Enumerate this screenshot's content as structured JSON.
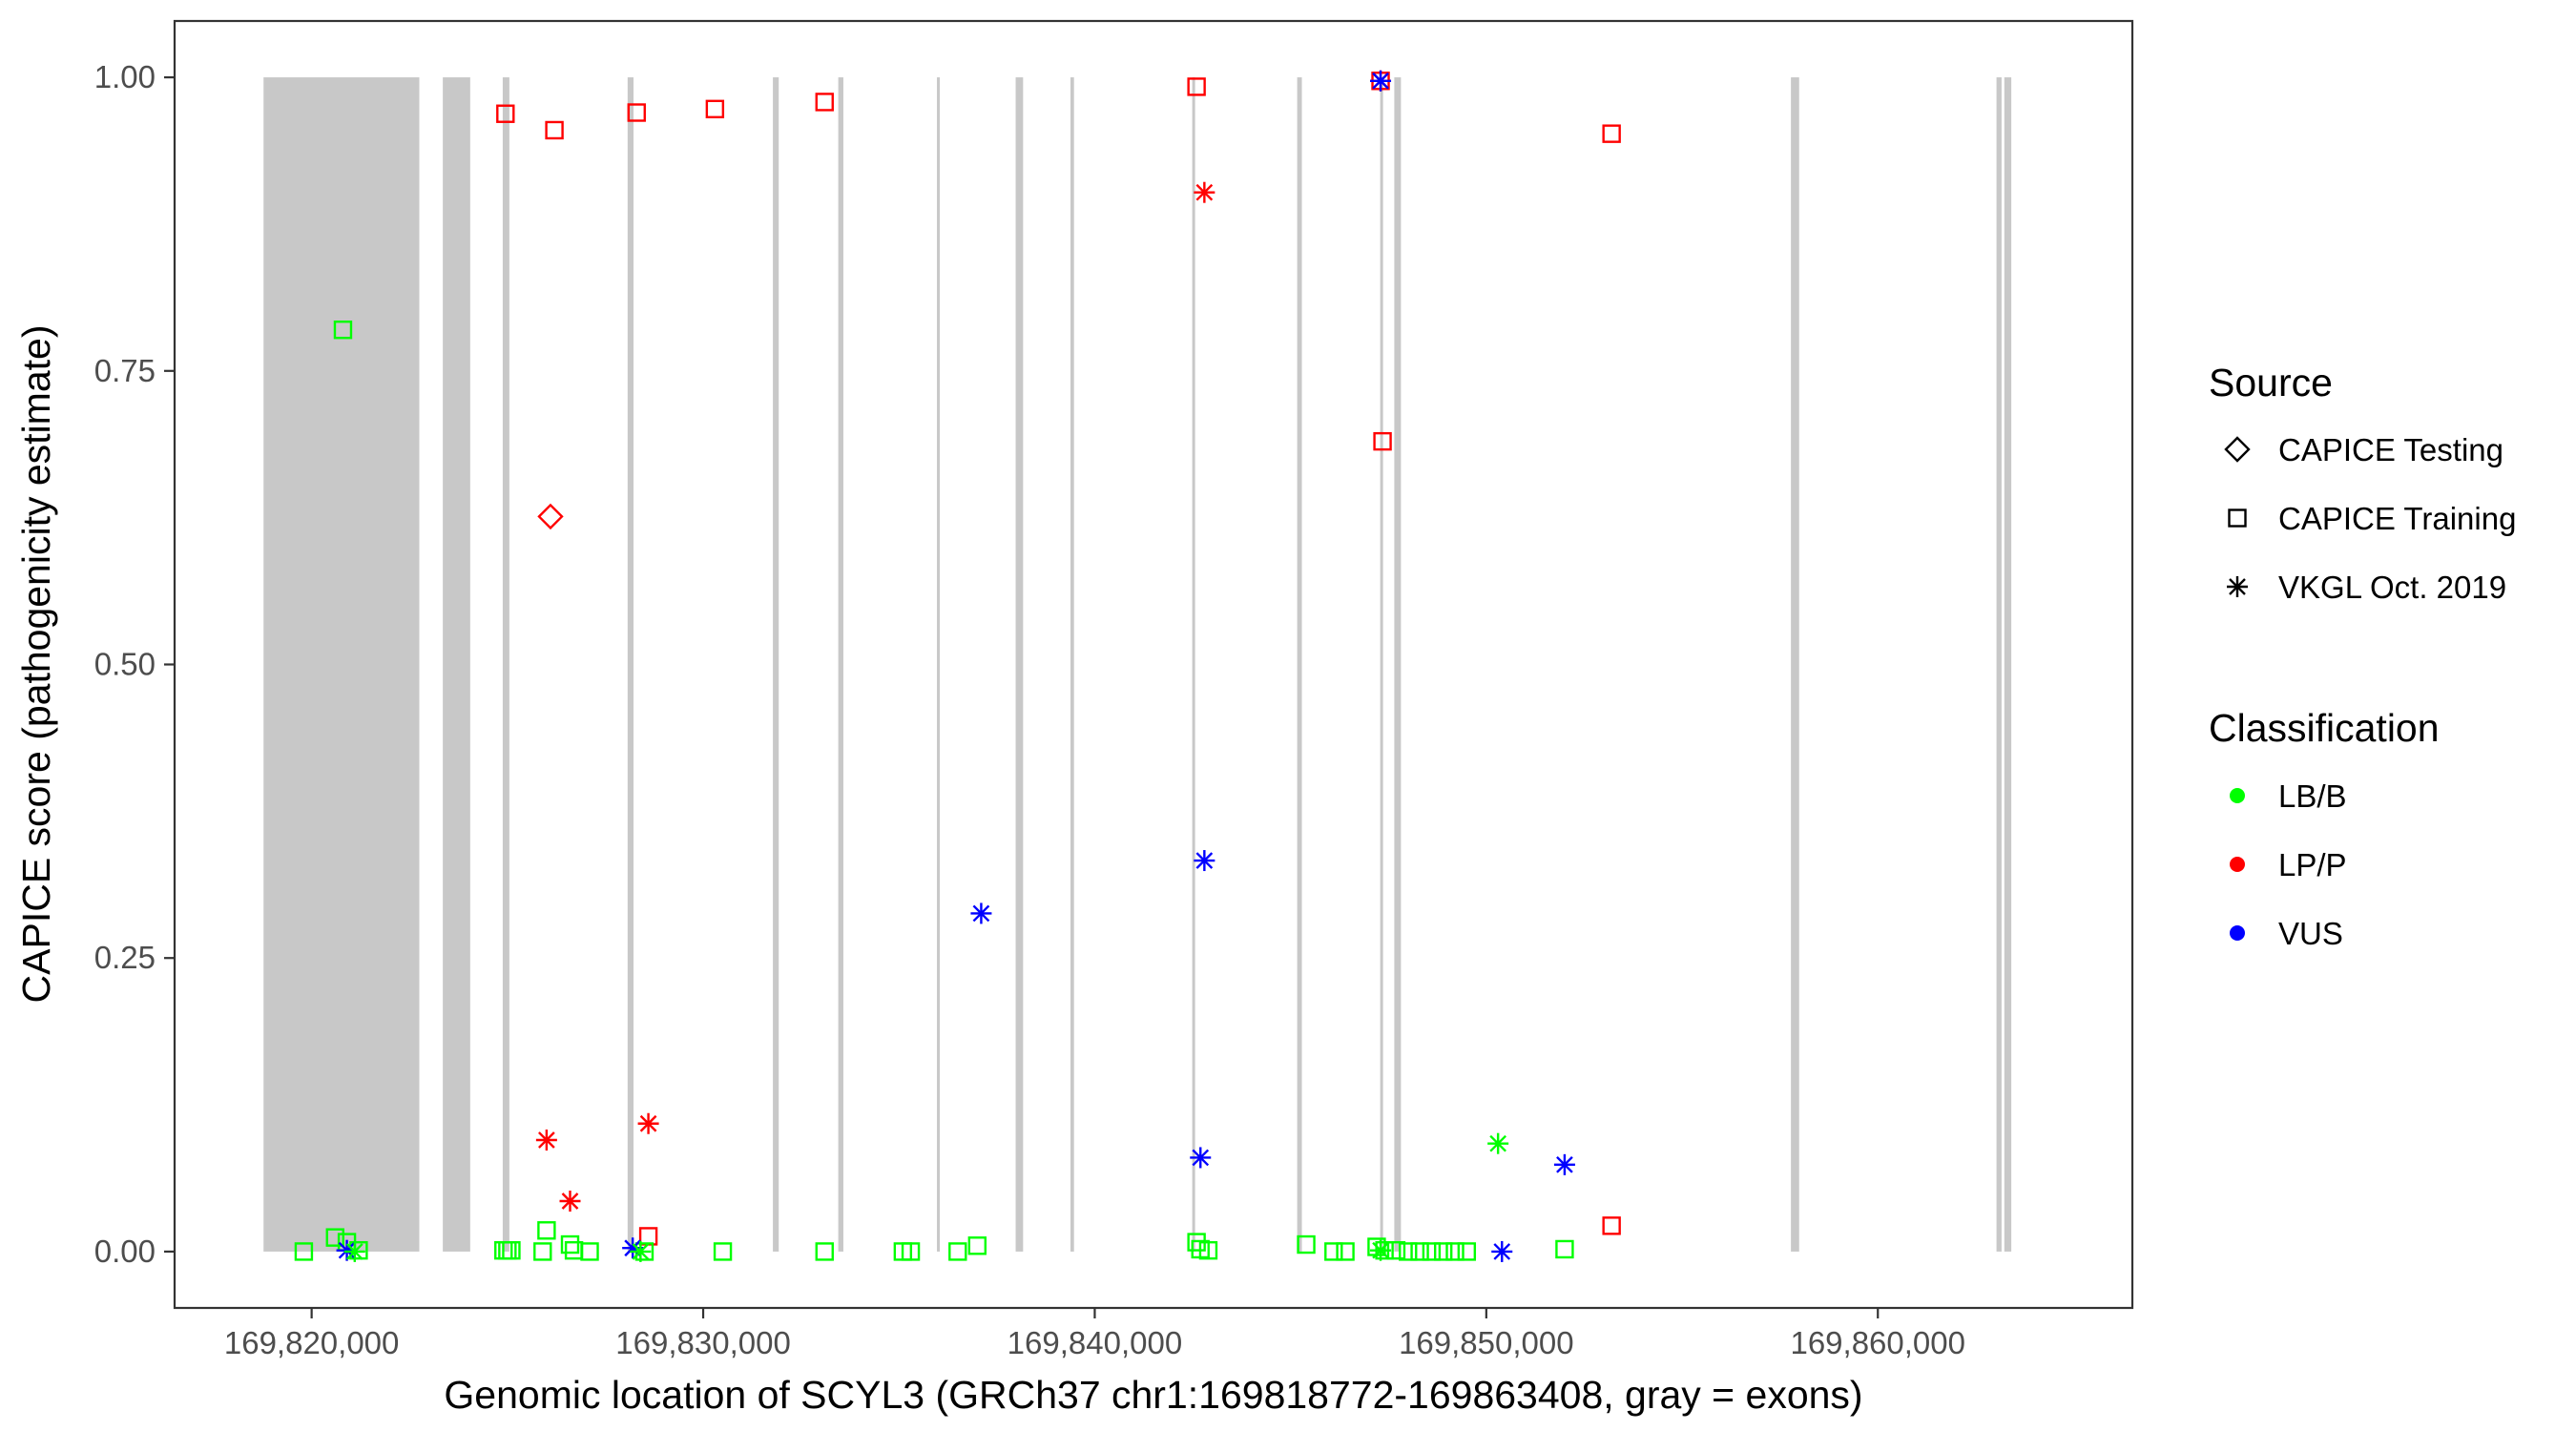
{
  "chart_data": {
    "type": "scatter",
    "xlabel": "Genomic location of SCYL3 (GRCh37 chr1:169818772-169863408, gray = exons)",
    "ylabel": "CAPICE score (pathogenicity estimate)",
    "xlim": [
      169816500,
      169866500
    ],
    "ylim": [
      -0.048,
      1.048
    ],
    "x_ticks": [
      169820000,
      169830000,
      169840000,
      169850000,
      169860000
    ],
    "x_tick_labels": [
      "169,820,000",
      "169,830,000",
      "169,840,000",
      "169,850,000",
      "169,860,000"
    ],
    "y_ticks": [
      0,
      0.25,
      0.5,
      0.75,
      1
    ],
    "y_tick_labels": [
      "0.00",
      "0.25",
      "0.50",
      "0.75",
      "1.00"
    ],
    "grid": false,
    "legend_placement": "right",
    "exons": [
      [
        169818772,
        169822750
      ],
      [
        169823350,
        169824050
      ],
      [
        169824880,
        169825050
      ],
      [
        169828070,
        169828220
      ],
      [
        169831780,
        169831930
      ],
      [
        169833450,
        169833580
      ],
      [
        169835970,
        169836030
      ],
      [
        169837980,
        169838170
      ],
      [
        169839380,
        169839470
      ],
      [
        169842490,
        169842560
      ],
      [
        169845170,
        169845290
      ],
      [
        169847290,
        169847360
      ],
      [
        169847650,
        169847820
      ],
      [
        169857780,
        169857990
      ],
      [
        169863030,
        169863160
      ],
      [
        169863230,
        169863408
      ]
    ],
    "legend": {
      "source_title": "Source",
      "source_items": [
        {
          "label": "CAPICE Testing",
          "shape": "diamond"
        },
        {
          "label": "CAPICE Training",
          "shape": "square"
        },
        {
          "label": "VKGL Oct. 2019",
          "shape": "star"
        }
      ],
      "class_title": "Classification",
      "class_items": [
        {
          "label": "LB/B",
          "color": "#00ff00"
        },
        {
          "label": "LP/P",
          "color": "#ff0000"
        },
        {
          "label": "VUS",
          "color": "#0000ff"
        }
      ]
    },
    "series": [
      {
        "source": "CAPICE Training",
        "classification": "LP/P",
        "points": [
          [
            169824950,
            0.969
          ],
          [
            169826200,
            0.955
          ],
          [
            169828300,
            0.97
          ],
          [
            169830300,
            0.973
          ],
          [
            169833100,
            0.979
          ],
          [
            169842600,
            0.992
          ],
          [
            169847300,
            0.997
          ],
          [
            169847350,
            0.69
          ],
          [
            169853200,
            0.952
          ],
          [
            169828600,
            0.013
          ],
          [
            169853200,
            0.022
          ]
        ]
      },
      {
        "source": "CAPICE Training",
        "classification": "LB/B",
        "points": [
          [
            169820800,
            0.785
          ],
          [
            169819800,
            0.0
          ],
          [
            169820600,
            0.012
          ],
          [
            169820900,
            0.008
          ],
          [
            169821200,
            0.001
          ],
          [
            169824900,
            0.001
          ],
          [
            169825000,
            0.001
          ],
          [
            169825100,
            0.001
          ],
          [
            169825900,
            0.0
          ],
          [
            169826000,
            0.018
          ],
          [
            169826600,
            0.006
          ],
          [
            169826700,
            0.001
          ],
          [
            169827100,
            0.0
          ],
          [
            169828500,
            0.0
          ],
          [
            169830500,
            0.0
          ],
          [
            169833100,
            0.0
          ],
          [
            169835100,
            0.0
          ],
          [
            169835300,
            0.0
          ],
          [
            169836500,
            0.0
          ],
          [
            169837000,
            0.005
          ],
          [
            169842600,
            0.008
          ],
          [
            169842700,
            0.002
          ],
          [
            169842900,
            0.001
          ],
          [
            169845400,
            0.006
          ],
          [
            169846100,
            0.0
          ],
          [
            169846400,
            0.0
          ],
          [
            169847200,
            0.004
          ],
          [
            169847400,
            0.001
          ],
          [
            169847700,
            0.001
          ],
          [
            169848000,
            0.0
          ],
          [
            169848300,
            0.0
          ],
          [
            169848600,
            0.0
          ],
          [
            169848900,
            0.0
          ],
          [
            169849200,
            0.0
          ],
          [
            169849500,
            0.0
          ],
          [
            169852000,
            0.002
          ]
        ]
      },
      {
        "source": "CAPICE Testing",
        "classification": "LP/P",
        "points": [
          [
            169826100,
            0.626
          ]
        ]
      },
      {
        "source": "VKGL Oct. 2019",
        "classification": "LP/P",
        "points": [
          [
            169842800,
            0.902
          ],
          [
            169826000,
            0.095
          ],
          [
            169826600,
            0.043
          ],
          [
            169828600,
            0.109
          ],
          [
            169847300,
            0.997
          ]
        ]
      },
      {
        "source": "VKGL Oct. 2019",
        "classification": "VUS",
        "points": [
          [
            169847300,
            0.997
          ],
          [
            169842800,
            0.333
          ],
          [
            169837100,
            0.288
          ],
          [
            169842700,
            0.08
          ],
          [
            169852000,
            0.074
          ],
          [
            169820900,
            0.001
          ],
          [
            169828200,
            0.003
          ],
          [
            169850400,
            0.0
          ]
        ]
      },
      {
        "source": "VKGL Oct. 2019",
        "classification": "LB/B",
        "points": [
          [
            169850300,
            0.092
          ],
          [
            169821100,
            0.0
          ],
          [
            169828400,
            0.0
          ],
          [
            169847300,
            0.001
          ]
        ]
      }
    ]
  }
}
